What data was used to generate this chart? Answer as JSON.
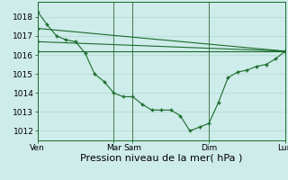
{
  "background_color": "#ceecea",
  "grid_color": "#b0d8d0",
  "line_color": "#1a6b2a",
  "marker": "+",
  "marker_size": 3,
  "marker_lw": 1.0,
  "xlabel": "Pression niveau de la mer( hPa )",
  "xlabel_fontsize": 8,
  "tick_fontsize": 6.5,
  "ylim": [
    1011.5,
    1018.8
  ],
  "yticks": [
    1012,
    1013,
    1014,
    1015,
    1016,
    1017,
    1018
  ],
  "xtick_labels": [
    "Ven",
    "Mar",
    "Sam",
    "Dim",
    "Lun"
  ],
  "xtick_positions": [
    0,
    24,
    30,
    54,
    78
  ],
  "total_x": 78,
  "series1": {
    "x": [
      0,
      3,
      6,
      9,
      12,
      15,
      18,
      21,
      24,
      27,
      30,
      33,
      36,
      39,
      42,
      45,
      48,
      51,
      54,
      57,
      60,
      63,
      66,
      69,
      72,
      75,
      78
    ],
    "y": [
      1018.3,
      1017.6,
      1017.0,
      1016.8,
      1016.7,
      1016.1,
      1015.0,
      1014.6,
      1014.0,
      1013.8,
      1013.8,
      1013.4,
      1013.1,
      1013.1,
      1013.1,
      1012.8,
      1012.0,
      1012.2,
      1012.4,
      1013.5,
      1014.8,
      1015.1,
      1015.2,
      1015.4,
      1015.5,
      1015.8,
      1016.2
    ]
  },
  "series2": {
    "x": [
      0,
      78
    ],
    "y": [
      1017.4,
      1016.2
    ]
  },
  "series3": {
    "x": [
      0,
      78
    ],
    "y": [
      1016.7,
      1016.2
    ]
  },
  "series4": {
    "x": [
      0,
      78
    ],
    "y": [
      1016.2,
      1016.2
    ]
  },
  "vline_color": "#336633",
  "vlines": [
    0,
    24,
    30,
    54,
    78
  ]
}
